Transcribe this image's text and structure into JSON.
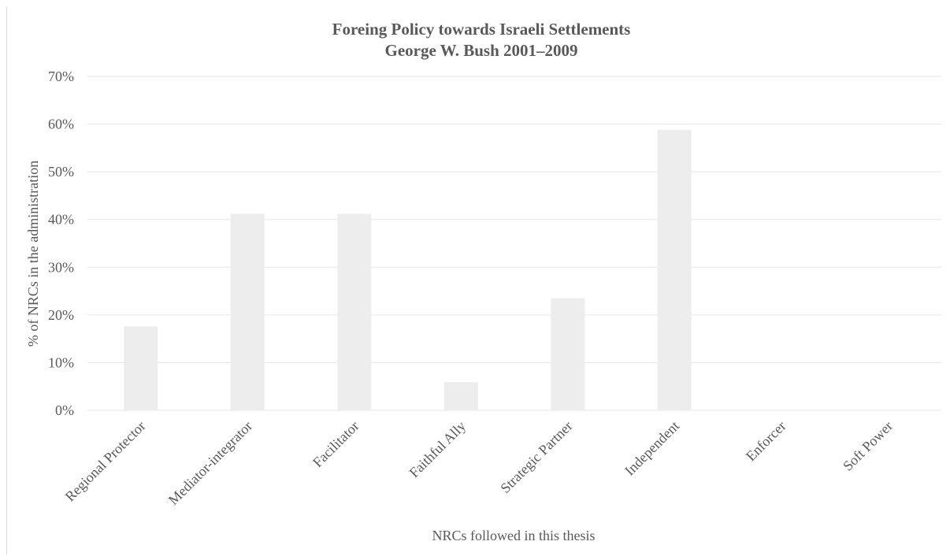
{
  "chart_data": {
    "type": "bar",
    "title": "Foreing Policy towards Israeli Settlements",
    "subtitle": "George W. Bush 2001–2009",
    "xlabel": "NRCs followed in this thesis",
    "ylabel": "% of NRCs in the administration",
    "categories": [
      "Regional Protector",
      "Mediator-integrator",
      "Facilitator",
      "Faithful Ally",
      "Strategic Partner",
      "Independent",
      "Enforcer",
      "Soft Power"
    ],
    "values": [
      17.6,
      41.2,
      41.2,
      5.9,
      23.5,
      58.8,
      0,
      0
    ],
    "ylim": [
      0,
      70
    ],
    "yticks": [
      0,
      10,
      20,
      30,
      40,
      50,
      60,
      70
    ],
    "ytick_labels": [
      "0%",
      "10%",
      "20%",
      "30%",
      "40%",
      "50%",
      "60%",
      "70%"
    ],
    "grid": true,
    "legend": "none",
    "bar_color": "#ededed",
    "grid_color": "#e6e6e6",
    "text_color": "#595959"
  }
}
